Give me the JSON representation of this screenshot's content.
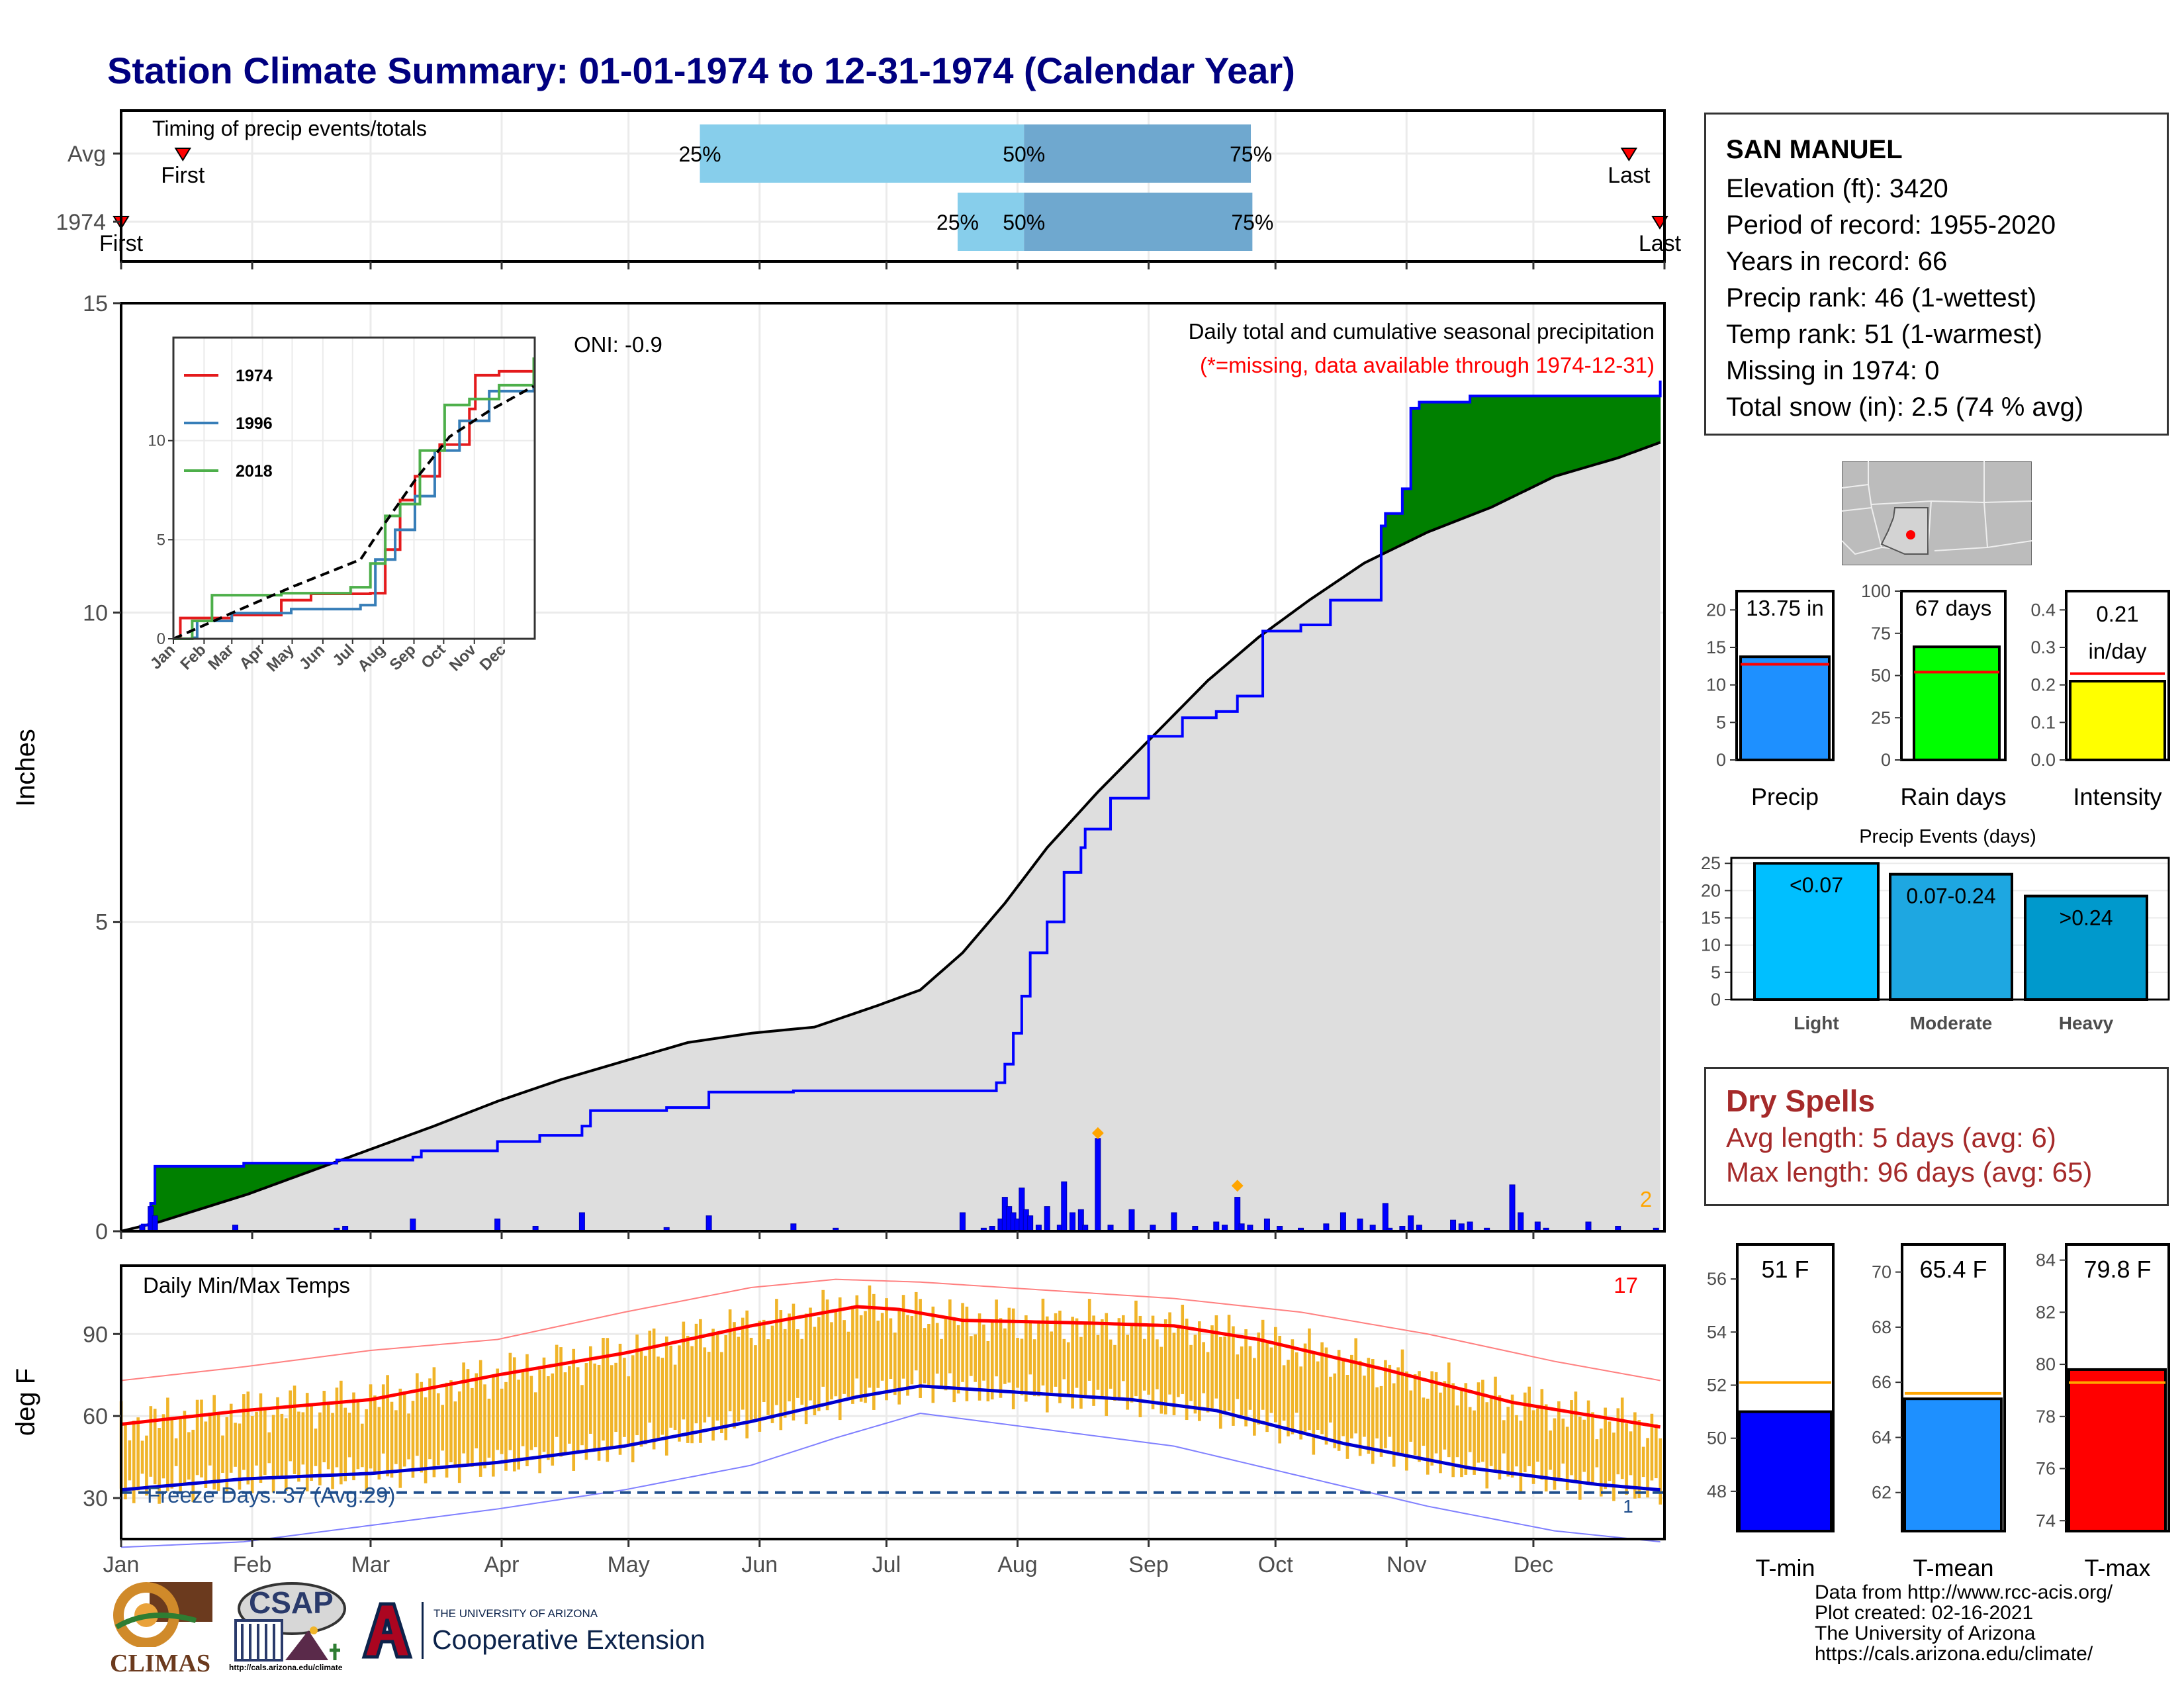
{
  "title": "Station Climate Summary: 01-01-1974 to 12-31-1974 (Calendar Year)",
  "station_info": {
    "name": "SAN MANUEL",
    "lines": [
      "Elevation (ft): 3420",
      "Period of record: 1955-2020",
      "Years in record: 66",
      "Precip rank: 46 (1-wettest)",
      "Temp rank: 51 (1-warmest)",
      "Missing in 1974: 0",
      "Total snow (in): 2.5 (74 % avg)"
    ]
  },
  "dry_spells": {
    "title": "Dry Spells",
    "avg_length": "Avg length: 5 days (avg: 6)",
    "max_length": "Max length: 96 days (avg: 65)"
  },
  "footer": {
    "lines": [
      "Data from http://www.rcc-acis.org/",
      "Plot created: 02-16-2021",
      "The University of Arizona",
      "https://cals.arizona.edu/climate/"
    ]
  },
  "logos": {
    "climas": "CLIMAS",
    "csap": "CSAP",
    "csap_url": "http://cals.arizona.edu/climate",
    "ua_top": "THE UNIVERSITY OF ARIZONA",
    "ua_bottom": "Cooperative Extension"
  },
  "colors": {
    "title": "#000080",
    "above_normal": "#008000",
    "below_normal": "#8b5a00",
    "normal_fill": "#dedede",
    "observed_line": "#0000ff",
    "temp_bar": "#f0b429",
    "dry_spells": "#a52a2a",
    "light": "#00bfff",
    "moderate": "#1ea7e1",
    "heavy": "#0099cc"
  },
  "chart_data": [
    {
      "id": "timing",
      "type": "bar",
      "title": "Timing of precip events/totals",
      "rows": [
        {
          "label": "Avg",
          "first": "First",
          "last": "Last",
          "p25": 0.375,
          "p50": 0.585,
          "p75": 0.732,
          "first_frac": 0.04,
          "last_frac": 0.977,
          "p25_label": "25%",
          "p50_label": "50%",
          "p75_label": "75%"
        },
        {
          "label": "1974",
          "first": "First",
          "last": "Last",
          "p25": 0.542,
          "p50": 0.585,
          "p75": 0.733,
          "first_frac": 0.0,
          "last_frac": 0.997,
          "p25_label": "25%",
          "p50_label": "50%",
          "p75_label": "75%"
        }
      ]
    },
    {
      "id": "precip",
      "type": "area",
      "title": "Daily total and cumulative seasonal precipitation",
      "subtitle": "(*=missing, data available through 1974-12-31)",
      "annotation": "ONI: -0.9",
      "corner_count": "2",
      "ylabel": "Inches",
      "ylim": [
        0,
        15
      ],
      "yticks": [
        0,
        5,
        10,
        15
      ],
      "observed_cumulative": [
        [
          1,
          0.0
        ],
        [
          6,
          0.1
        ],
        [
          8,
          0.45
        ],
        [
          9,
          1.05
        ],
        [
          30,
          1.1
        ],
        [
          52,
          1.15
        ],
        [
          70,
          1.2
        ],
        [
          72,
          1.3
        ],
        [
          90,
          1.45
        ],
        [
          100,
          1.55
        ],
        [
          110,
          1.7
        ],
        [
          112,
          1.95
        ],
        [
          130,
          2.0
        ],
        [
          140,
          2.25
        ],
        [
          160,
          2.27
        ],
        [
          200,
          2.27
        ],
        [
          208,
          2.4
        ],
        [
          210,
          2.7
        ],
        [
          212,
          3.2
        ],
        [
          214,
          3.8
        ],
        [
          216,
          4.5
        ],
        [
          220,
          5.0
        ],
        [
          224,
          5.8
        ],
        [
          228,
          6.2
        ],
        [
          229,
          6.5
        ],
        [
          235,
          7.0
        ],
        [
          244,
          8.0
        ],
        [
          252,
          8.3
        ],
        [
          260,
          8.4
        ],
        [
          265,
          8.65
        ],
        [
          271,
          9.7
        ],
        [
          280,
          9.8
        ],
        [
          287,
          10.2
        ],
        [
          299,
          11.4
        ],
        [
          300,
          11.6
        ],
        [
          304,
          12.0
        ],
        [
          306,
          13.3
        ],
        [
          308,
          13.4
        ],
        [
          320,
          13.5
        ],
        [
          350,
          13.5
        ],
        [
          365,
          13.75
        ]
      ],
      "normal_cumulative": [
        [
          1,
          0.0
        ],
        [
          10,
          0.15
        ],
        [
          31,
          0.6
        ],
        [
          45,
          0.95
        ],
        [
          59,
          1.3
        ],
        [
          75,
          1.7
        ],
        [
          90,
          2.1
        ],
        [
          105,
          2.45
        ],
        [
          120,
          2.75
        ],
        [
          135,
          3.05
        ],
        [
          150,
          3.2
        ],
        [
          165,
          3.3
        ],
        [
          180,
          3.65
        ],
        [
          190,
          3.9
        ],
        [
          200,
          4.5
        ],
        [
          210,
          5.3
        ],
        [
          220,
          6.2
        ],
        [
          232,
          7.1
        ],
        [
          245,
          8.0
        ],
        [
          258,
          8.9
        ],
        [
          270,
          9.6
        ],
        [
          282,
          10.2
        ],
        [
          295,
          10.8
        ],
        [
          310,
          11.3
        ],
        [
          325,
          11.7
        ],
        [
          340,
          12.2
        ],
        [
          355,
          12.5
        ],
        [
          365,
          12.75
        ]
      ],
      "daily": [
        [
          6,
          0.1
        ],
        [
          8,
          0.4
        ],
        [
          9,
          0.25
        ],
        [
          28,
          0.1
        ],
        [
          52,
          0.05
        ],
        [
          54,
          0.08
        ],
        [
          70,
          0.2
        ],
        [
          90,
          0.2
        ],
        [
          99,
          0.08
        ],
        [
          110,
          0.3
        ],
        [
          130,
          0.06
        ],
        [
          140,
          0.25
        ],
        [
          160,
          0.12
        ],
        [
          170,
          0.05
        ],
        [
          200,
          0.3
        ],
        [
          205,
          0.05
        ],
        [
          207,
          0.08
        ],
        [
          209,
          0.2
        ],
        [
          210,
          0.55
        ],
        [
          211,
          0.4
        ],
        [
          212,
          0.3
        ],
        [
          213,
          0.2
        ],
        [
          214,
          0.7
        ],
        [
          215,
          0.35
        ],
        [
          216,
          0.25
        ],
        [
          218,
          0.1
        ],
        [
          220,
          0.4
        ],
        [
          223,
          0.1
        ],
        [
          224,
          0.8
        ],
        [
          226,
          0.3
        ],
        [
          228,
          0.35
        ],
        [
          229,
          0.1
        ],
        [
          232,
          1.5
        ],
        [
          235,
          0.1
        ],
        [
          240,
          0.35
        ],
        [
          245,
          0.1
        ],
        [
          250,
          0.3
        ],
        [
          255,
          0.08
        ],
        [
          260,
          0.15
        ],
        [
          262,
          0.1
        ],
        [
          265,
          0.55
        ],
        [
          266,
          0.12
        ],
        [
          268,
          0.1
        ],
        [
          272,
          0.2
        ],
        [
          275,
          0.08
        ],
        [
          280,
          0.05
        ],
        [
          286,
          0.12
        ],
        [
          290,
          0.3
        ],
        [
          294,
          0.2
        ],
        [
          297,
          0.1
        ],
        [
          300,
          0.45
        ],
        [
          301,
          0.05
        ],
        [
          304,
          0.08
        ],
        [
          306,
          0.25
        ],
        [
          308,
          0.1
        ],
        [
          316,
          0.18
        ],
        [
          318,
          0.12
        ],
        [
          320,
          0.15
        ],
        [
          324,
          0.05
        ],
        [
          330,
          0.75
        ],
        [
          332,
          0.3
        ],
        [
          336,
          0.15
        ],
        [
          338,
          0.05
        ],
        [
          348,
          0.15
        ],
        [
          355,
          0.08
        ],
        [
          364,
          0.05
        ]
      ],
      "snow_marks": [
        [
          232,
          1.5
        ],
        [
          265,
          0.65
        ]
      ],
      "x_ticks": [
        "Jan",
        "Feb",
        "Mar",
        "Apr",
        "May",
        "Jun",
        "Jul",
        "Aug",
        "Sep",
        "Oct",
        "Nov",
        "Dec"
      ]
    },
    {
      "id": "inset",
      "type": "line",
      "ylim": [
        0,
        15
      ],
      "yticks": [
        0,
        5,
        10
      ],
      "x_ticks": [
        "Jan",
        "Feb",
        "Mar",
        "Apr",
        "May",
        "Jun",
        "Jul",
        "Aug",
        "Sep",
        "Oct",
        "Nov",
        "Dec"
      ],
      "series": [
        {
          "name": "1974",
          "color": "#e41a1c",
          "values": [
            [
              1,
              0.0
            ],
            [
              8,
              1.05
            ],
            [
              60,
              1.2
            ],
            [
              110,
              1.95
            ],
            [
              140,
              2.27
            ],
            [
              200,
              2.3
            ],
            [
              215,
              4.5
            ],
            [
              230,
              7.0
            ],
            [
              245,
              8.2
            ],
            [
              270,
              9.8
            ],
            [
              300,
              11.6
            ],
            [
              306,
              13.3
            ],
            [
              330,
              13.5
            ],
            [
              365,
              13.75
            ]
          ]
        },
        {
          "name": "1996",
          "color": "#377eb8",
          "values": [
            [
              1,
              0.0
            ],
            [
              20,
              0.05
            ],
            [
              25,
              0.9
            ],
            [
              60,
              1.3
            ],
            [
              120,
              1.5
            ],
            [
              190,
              1.7
            ],
            [
              205,
              4.0
            ],
            [
              225,
              5.5
            ],
            [
              245,
              7.2
            ],
            [
              265,
              9.5
            ],
            [
              290,
              11.0
            ],
            [
              320,
              12.5
            ],
            [
              365,
              13.3
            ]
          ]
        },
        {
          "name": "2018",
          "color": "#4daf4a",
          "values": [
            [
              1,
              0.0
            ],
            [
              20,
              0.9
            ],
            [
              40,
              2.2
            ],
            [
              70,
              2.2
            ],
            [
              110,
              2.3
            ],
            [
              180,
              2.6
            ],
            [
              200,
              3.8
            ],
            [
              215,
              6.2
            ],
            [
              230,
              6.8
            ],
            [
              250,
              9.5
            ],
            [
              275,
              11.8
            ],
            [
              300,
              12.1
            ],
            [
              330,
              12.8
            ],
            [
              365,
              14.2
            ]
          ]
        },
        {
          "name": "",
          "color": "#000000",
          "dashed": true,
          "values": [
            [
              1,
              0.0
            ],
            [
              60,
              1.3
            ],
            [
              120,
              2.6
            ],
            [
              190,
              4.0
            ],
            [
              210,
              5.5
            ],
            [
              245,
              8.0
            ],
            [
              280,
              10.2
            ],
            [
              320,
              11.5
            ],
            [
              365,
              12.75
            ]
          ]
        }
      ]
    },
    {
      "id": "temps",
      "type": "bar",
      "title": "Daily Min/Max Temps",
      "ylabel": "deg F",
      "ylim": [
        15,
        115
      ],
      "yticks": [
        30,
        60,
        90
      ],
      "corner_count": "17",
      "freeze_label": "Freeze Days: 37 (Avg:29)",
      "freeze_line": 32,
      "bottom_count": "1",
      "normal_max": [
        [
          1,
          57
        ],
        [
          30,
          62
        ],
        [
          60,
          66
        ],
        [
          90,
          75
        ],
        [
          120,
          83
        ],
        [
          150,
          93
        ],
        [
          175,
          100
        ],
        [
          185,
          99
        ],
        [
          200,
          95
        ],
        [
          230,
          94
        ],
        [
          250,
          93
        ],
        [
          270,
          88
        ],
        [
          300,
          77
        ],
        [
          330,
          65
        ],
        [
          365,
          56
        ]
      ],
      "normal_min": [
        [
          1,
          33
        ],
        [
          30,
          37
        ],
        [
          60,
          39
        ],
        [
          90,
          43
        ],
        [
          120,
          49
        ],
        [
          150,
          58
        ],
        [
          175,
          67
        ],
        [
          190,
          71
        ],
        [
          210,
          69
        ],
        [
          240,
          66
        ],
        [
          260,
          62
        ],
        [
          290,
          50
        ],
        [
          320,
          41
        ],
        [
          350,
          35
        ],
        [
          365,
          33
        ]
      ],
      "record_max": [
        [
          1,
          73
        ],
        [
          30,
          78
        ],
        [
          60,
          84
        ],
        [
          90,
          88
        ],
        [
          120,
          98
        ],
        [
          150,
          107
        ],
        [
          170,
          110
        ],
        [
          190,
          109
        ],
        [
          220,
          106
        ],
        [
          250,
          103
        ],
        [
          280,
          98
        ],
        [
          310,
          90
        ],
        [
          340,
          80
        ],
        [
          365,
          73
        ]
      ],
      "record_min": [
        [
          1,
          12
        ],
        [
          30,
          14
        ],
        [
          60,
          20
        ],
        [
          90,
          26
        ],
        [
          120,
          33
        ],
        [
          150,
          42
        ],
        [
          170,
          52
        ],
        [
          190,
          61
        ],
        [
          220,
          55
        ],
        [
          250,
          49
        ],
        [
          280,
          38
        ],
        [
          310,
          27
        ],
        [
          340,
          18
        ],
        [
          365,
          14
        ]
      ],
      "x_ticks": [
        "Jan",
        "Feb",
        "Mar",
        "Apr",
        "May",
        "Jun",
        "Jul",
        "Aug",
        "Sep",
        "Oct",
        "Nov",
        "Dec"
      ]
    },
    {
      "id": "precip-total",
      "type": "bar",
      "categories": [
        "Precip"
      ],
      "values": [
        13.75
      ],
      "normal": 12.75,
      "label": "13.75 in",
      "ylim": [
        0,
        22.5
      ],
      "yticks": [
        0,
        5,
        10,
        15,
        20
      ],
      "color": "#1e90ff"
    },
    {
      "id": "rain-days",
      "type": "bar",
      "categories": [
        "Rain days"
      ],
      "values": [
        67
      ],
      "normal": 52,
      "label": "67 days",
      "ylim": [
        0,
        100
      ],
      "yticks": [
        0,
        25,
        50,
        75,
        100
      ],
      "color": "#00ff00"
    },
    {
      "id": "intensity",
      "type": "bar",
      "categories": [
        "Intensity"
      ],
      "values": [
        0.21
      ],
      "normal": 0.23,
      "label": "0.21",
      "label2": "in/day",
      "ylim": [
        0,
        0.45
      ],
      "yticks": [
        0.0,
        0.1,
        0.2,
        0.3,
        0.4
      ],
      "color": "#ffff00"
    },
    {
      "id": "precip-events",
      "type": "bar",
      "title": "Precip Events (days)",
      "categories": [
        "Light",
        "Moderate",
        "Heavy"
      ],
      "values": [
        25,
        23,
        19
      ],
      "bar_labels": [
        "<0.07",
        "0.07-0.24",
        ">0.24"
      ],
      "ylim": [
        0,
        26
      ],
      "yticks": [
        0,
        5,
        10,
        15,
        20,
        25
      ]
    },
    {
      "id": "t-min",
      "type": "bar",
      "categories": [
        "T-min"
      ],
      "values": [
        51
      ],
      "normal": 52.1,
      "label": "51 F",
      "ylim": [
        46.5,
        57.3
      ],
      "yticks": [
        48,
        50,
        52,
        54,
        56
      ],
      "color": "#0000ff"
    },
    {
      "id": "t-mean",
      "type": "bar",
      "categories": [
        "T-mean"
      ],
      "values": [
        65.4
      ],
      "normal": 65.6,
      "label": "65.4 F",
      "ylim": [
        60.6,
        71.0
      ],
      "yticks": [
        62,
        64,
        66,
        68,
        70
      ],
      "color": "#1e90ff"
    },
    {
      "id": "t-max",
      "type": "bar",
      "categories": [
        "T-max"
      ],
      "values": [
        79.8
      ],
      "normal": 79.3,
      "label": "79.8 F",
      "ylim": [
        73.6,
        84.6
      ],
      "yticks": [
        74,
        76,
        78,
        80,
        82,
        84
      ],
      "color": "#ff0000"
    }
  ]
}
